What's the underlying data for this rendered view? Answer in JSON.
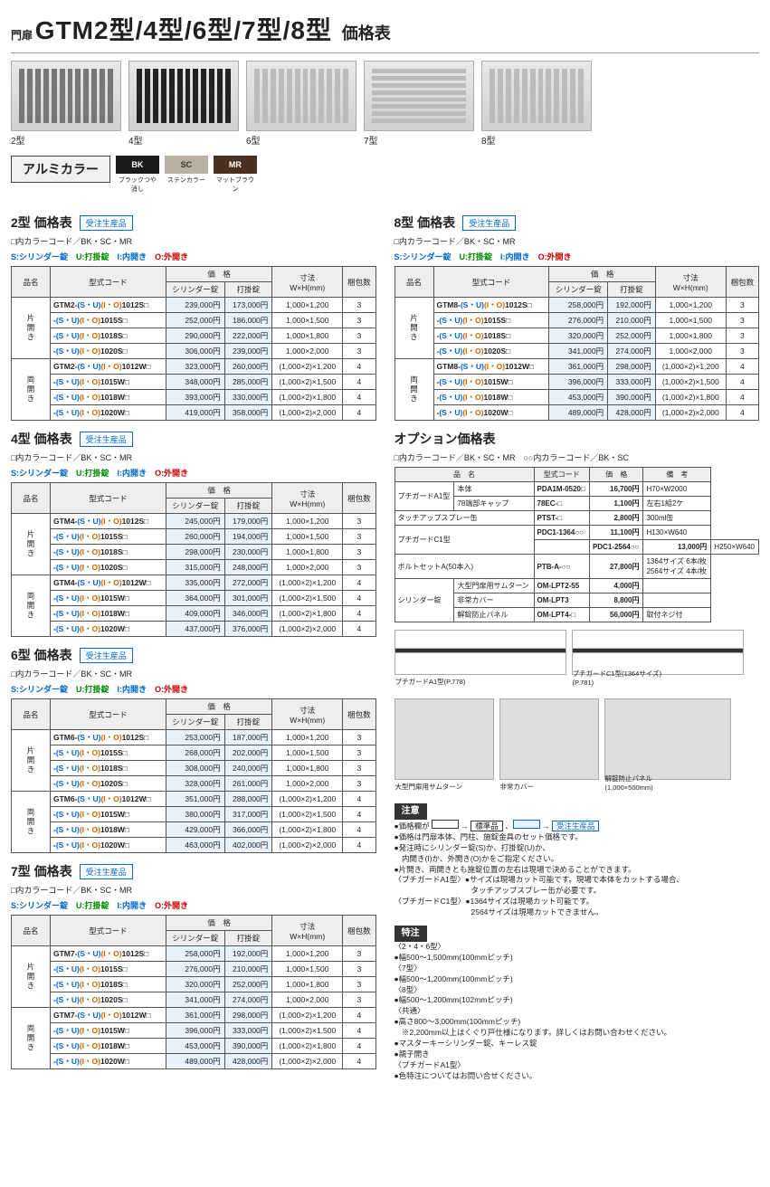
{
  "header": {
    "prefix": "門扉",
    "title": "GTM2型/4型/6型/7型/8型",
    "subtitle": "価格表"
  },
  "gate_labels": [
    "2型",
    "4型",
    "6型",
    "7型",
    "8型"
  ],
  "alumi_label": "アルミカラー",
  "colors": [
    {
      "code": "BK",
      "name": "ブラックつや消し",
      "hex": "#1a1a1a"
    },
    {
      "code": "SC",
      "name": "ステンカラー",
      "hex": "#b8b0a0"
    },
    {
      "code": "MR",
      "name": "マットブラウン",
      "hex": "#4a3020"
    }
  ],
  "color_code_note": "□内カラーコード／BK・SC・MR",
  "lock_legend": {
    "S": "S:シリンダー錠",
    "U": "U:打掛錠",
    "I": "I:内開き",
    "O": "O:外開き"
  },
  "table_headers": {
    "name": "品名",
    "code": "型式コード",
    "price": "価　格",
    "cyl": "シリンダー錠",
    "latch": "打掛錠",
    "dim": "寸法\nW×H(mm)",
    "qty": "梱包数"
  },
  "row_names": {
    "single": "片開き",
    "double": "両開き"
  },
  "price_tables": [
    {
      "title": "2型 価格表",
      "prefix": "GTM2-",
      "single": [
        {
          "code": "1012S",
          "p1": "239,000",
          "p2": "173,000",
          "dim": "1,000×1,200",
          "q": "3"
        },
        {
          "code": "1015S",
          "p1": "252,000",
          "p2": "186,000",
          "dim": "1,000×1,500",
          "q": "3"
        },
        {
          "code": "1018S",
          "p1": "290,000",
          "p2": "222,000",
          "dim": "1,000×1,800",
          "q": "3"
        },
        {
          "code": "1020S",
          "p1": "306,000",
          "p2": "239,000",
          "dim": "1,000×2,000",
          "q": "3"
        }
      ],
      "double": [
        {
          "code": "1012W",
          "p1": "323,000",
          "p2": "260,000",
          "dim": "(1,000×2)×1,200",
          "q": "4"
        },
        {
          "code": "1015W",
          "p1": "348,000",
          "p2": "285,000",
          "dim": "(1,000×2)×1,500",
          "q": "4"
        },
        {
          "code": "1018W",
          "p1": "393,000",
          "p2": "330,000",
          "dim": "(1,000×2)×1,800",
          "q": "4"
        },
        {
          "code": "1020W",
          "p1": "419,000",
          "p2": "358,000",
          "dim": "(1,000×2)×2,000",
          "q": "4"
        }
      ]
    },
    {
      "title": "4型 価格表",
      "prefix": "GTM4-",
      "single": [
        {
          "code": "1012S",
          "p1": "245,000",
          "p2": "179,000",
          "dim": "1,000×1,200",
          "q": "3"
        },
        {
          "code": "1015S",
          "p1": "260,000",
          "p2": "194,000",
          "dim": "1,000×1,500",
          "q": "3"
        },
        {
          "code": "1018S",
          "p1": "298,000",
          "p2": "230,000",
          "dim": "1,000×1,800",
          "q": "3"
        },
        {
          "code": "1020S",
          "p1": "315,000",
          "p2": "248,000",
          "dim": "1,000×2,000",
          "q": "3"
        }
      ],
      "double": [
        {
          "code": "1012W",
          "p1": "335,000",
          "p2": "272,000",
          "dim": "(1,000×2)×1,200",
          "q": "4"
        },
        {
          "code": "1015W",
          "p1": "364,000",
          "p2": "301,000",
          "dim": "(1,000×2)×1,500",
          "q": "4"
        },
        {
          "code": "1018W",
          "p1": "409,000",
          "p2": "346,000",
          "dim": "(1,000×2)×1,800",
          "q": "4"
        },
        {
          "code": "1020W",
          "p1": "437,000",
          "p2": "376,000",
          "dim": "(1,000×2)×2,000",
          "q": "4"
        }
      ]
    },
    {
      "title": "6型 価格表",
      "prefix": "GTM6-",
      "single": [
        {
          "code": "1012S",
          "p1": "253,000",
          "p2": "187,000",
          "dim": "1,000×1,200",
          "q": "3"
        },
        {
          "code": "1015S",
          "p1": "268,000",
          "p2": "202,000",
          "dim": "1,000×1,500",
          "q": "3"
        },
        {
          "code": "1018S",
          "p1": "308,000",
          "p2": "240,000",
          "dim": "1,000×1,800",
          "q": "3"
        },
        {
          "code": "1020S",
          "p1": "328,000",
          "p2": "261,000",
          "dim": "1,000×2,000",
          "q": "3"
        }
      ],
      "double": [
        {
          "code": "1012W",
          "p1": "351,000",
          "p2": "288,000",
          "dim": "(1,000×2)×1,200",
          "q": "4"
        },
        {
          "code": "1015W",
          "p1": "380,000",
          "p2": "317,000",
          "dim": "(1,000×2)×1,500",
          "q": "4"
        },
        {
          "code": "1018W",
          "p1": "429,000",
          "p2": "366,000",
          "dim": "(1,000×2)×1,800",
          "q": "4"
        },
        {
          "code": "1020W",
          "p1": "463,000",
          "p2": "402,000",
          "dim": "(1,000×2)×2,000",
          "q": "4"
        }
      ]
    },
    {
      "title": "7型 価格表",
      "prefix": "GTM7-",
      "single": [
        {
          "code": "1012S",
          "p1": "258,000",
          "p2": "192,000",
          "dim": "1,000×1,200",
          "q": "3"
        },
        {
          "code": "1015S",
          "p1": "276,000",
          "p2": "210,000",
          "dim": "1,000×1,500",
          "q": "3"
        },
        {
          "code": "1018S",
          "p1": "320,000",
          "p2": "252,000",
          "dim": "1,000×1,800",
          "q": "3"
        },
        {
          "code": "1020S",
          "p1": "341,000",
          "p2": "274,000",
          "dim": "1,000×2,000",
          "q": "3"
        }
      ],
      "double": [
        {
          "code": "1012W",
          "p1": "361,000",
          "p2": "298,000",
          "dim": "(1,000×2)×1,200",
          "q": "4"
        },
        {
          "code": "1015W",
          "p1": "396,000",
          "p2": "333,000",
          "dim": "(1,000×2)×1,500",
          "q": "4"
        },
        {
          "code": "1018W",
          "p1": "453,000",
          "p2": "390,000",
          "dim": "(1,000×2)×1,800",
          "q": "4"
        },
        {
          "code": "1020W",
          "p1": "489,000",
          "p2": "428,000",
          "dim": "(1,000×2)×2,000",
          "q": "4"
        }
      ]
    }
  ],
  "price_table_8": {
    "title": "8型 価格表",
    "prefix": "GTM8-",
    "single": [
      {
        "code": "1012S",
        "p1": "258,000",
        "p2": "192,000",
        "dim": "1,000×1,200",
        "q": "3"
      },
      {
        "code": "1015S",
        "p1": "276,000",
        "p2": "210,000",
        "dim": "1,000×1,500",
        "q": "3"
      },
      {
        "code": "1018S",
        "p1": "320,000",
        "p2": "252,000",
        "dim": "1,000×1,800",
        "q": "3"
      },
      {
        "code": "1020S",
        "p1": "341,000",
        "p2": "274,000",
        "dim": "1,000×2,000",
        "q": "3"
      }
    ],
    "double": [
      {
        "code": "1012W",
        "p1": "361,000",
        "p2": "298,000",
        "dim": "(1,000×2)×1,200",
        "q": "4"
      },
      {
        "code": "1015W",
        "p1": "396,000",
        "p2": "333,000",
        "dim": "(1,000×2)×1,500",
        "q": "4"
      },
      {
        "code": "1018W",
        "p1": "453,000",
        "p2": "390,000",
        "dim": "(1,000×2)×1,800",
        "q": "4"
      },
      {
        "code": "1020W",
        "p1": "489,000",
        "p2": "428,000",
        "dim": "(1,000×2)×2,000",
        "q": "4"
      }
    ]
  },
  "option": {
    "title": "オプション価格表",
    "note": "□内カラーコード／BK・SC・MR　○○内カラーコード／BK・SC",
    "headers": {
      "name": "品　名",
      "code": "型式コード",
      "price": "価　格",
      "remark": "備　考"
    },
    "rows": [
      {
        "n1": "プチガードA1型",
        "n2": "本体",
        "c": "PDA1M-0520□",
        "p": "16,700円",
        "r": "H70×W2000"
      },
      {
        "n1": "",
        "n2": "78端部キャップ",
        "c": "78EC-□",
        "p": "1,100円",
        "r": "左右1組2ケ"
      },
      {
        "n1": "タッチアップスプレー缶",
        "n2": "",
        "c": "PTST-□",
        "p": "2,800円",
        "r": "300ml缶"
      },
      {
        "n1": "プチガードC1型",
        "n2": "",
        "c": "PDC1-1364○○",
        "p": "11,100円",
        "r": "H130×W640"
      },
      {
        "n1": "",
        "n2": "",
        "c": "PDC1-2564○○",
        "p": "13,000円",
        "r": "H250×W640"
      },
      {
        "n1": "ボルトセットA(50本入)",
        "n2": "",
        "c": "PTB-A-○○",
        "p": "27,800円",
        "r": "1364サイズ 6本/枚\n2564サイズ 4本/枚"
      },
      {
        "n1": "シリンダー錠",
        "n2": "大型門扉用サムターン",
        "c": "OM-LPT2-55",
        "p": "4,000円",
        "r": ""
      },
      {
        "n1": "",
        "n2": "非常カバー",
        "c": "OM-LPT3",
        "p": "8,800円",
        "r": ""
      },
      {
        "n1": "",
        "n2": "解錠防止パネル",
        "c": "OM-LPT4-□",
        "p": "56,000円",
        "r": "取付ネジ付"
      }
    ]
  },
  "opt_captions": {
    "a1": "プチガードA1型(P.778)",
    "c1": "プチガードC1型(1364サイズ)\n(P.781)",
    "thumb": "大型門扉用サムターン",
    "cover": "非常カバー",
    "panel": "解錠防止パネル\n(1,000×500mm)"
  },
  "notes": {
    "title": "注意",
    "lines": [
      "●価格欄が　　　→ 標準品 、　　　→ 受注生産品",
      "●価格は門扉本体、門柱、施錠金具のセット価格です。",
      "●発注時にシリンダー錠(S)か、打掛錠(U)か、",
      "　内開き(I)か、外開き(O)かをご指定ください。",
      "●片開き、両開きとも施錠位置の左右は現場で決めることができます。",
      "〈プチガードA1型〉●サイズは現場カット可能です。現場で本体をカットする場合、",
      "　　　　　　　　　　タッチアップスプレー缶が必要です。",
      "〈プチガードC1型〉●1364サイズは現場カット可能です。",
      "　　　　　　　　　　2564サイズは現場カットできません。"
    ]
  },
  "special": {
    "title": "特注",
    "lines": [
      "〈2・4・6型〉",
      "●幅500～1,500mm(100mmピッチ)",
      "〈7型〉",
      "●幅500～1,200mm(100mmピッチ)",
      "〈8型〉",
      "●幅500～1,200mm(102mmピッチ)",
      "〈共通〉",
      "●高さ800～3,000mm(100mmピッチ)",
      "　※2,200mm以上はくぐり戸仕様になります。詳しくはお問い合わせください。",
      "●マスターキーシリンダー錠、キーレス錠",
      "●親子開き",
      "〈プチガードA1型〉",
      "●色特注についてはお問い合せください。"
    ]
  },
  "badge_text": "受注生産品",
  "yen": "円"
}
